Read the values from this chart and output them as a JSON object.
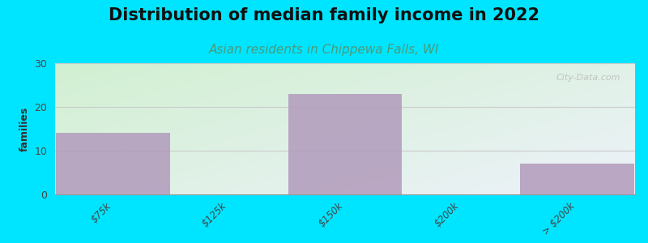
{
  "title": "Distribution of median family income in 2022",
  "subtitle": "Asian residents in Chippewa Falls, WI",
  "categories": [
    "$75k",
    "$125k",
    "$150k",
    "$200k",
    "> $200k"
  ],
  "values": [
    14,
    0,
    23,
    0,
    7
  ],
  "bar_color": "#b39dbd",
  "bg_outer": "#00e5ff",
  "ylabel": "families",
  "ylim": [
    0,
    30
  ],
  "yticks": [
    0,
    10,
    20,
    30
  ],
  "grid_color": "#dddddd",
  "title_fontsize": 15,
  "subtitle_fontsize": 11,
  "subtitle_color": "#4a9a7a",
  "watermark": "City-Data.com",
  "title_color": "#111111"
}
